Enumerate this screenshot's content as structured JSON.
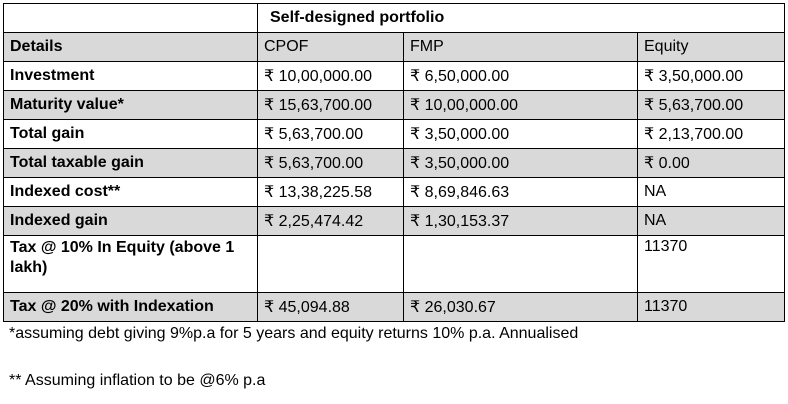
{
  "title_row": {
    "heading": "Self-designed portfolio"
  },
  "columns": [
    "Details",
    "CPOF",
    "FMP",
    "Equity"
  ],
  "rows": [
    {
      "label": "Investment",
      "values": [
        "₹ 10,00,000.00",
        "₹ 6,50,000.00",
        "₹ 3,50,000.00"
      ]
    },
    {
      "label": "Maturity value*",
      "values": [
        "₹ 15,63,700.00",
        "₹ 10,00,000.00",
        "₹ 5,63,700.00"
      ]
    },
    {
      "label": "Total gain",
      "values": [
        "₹ 5,63,700.00",
        "₹ 3,50,000.00",
        "₹ 2,13,700.00"
      ]
    },
    {
      "label": "Total taxable gain",
      "values": [
        "₹ 5,63,700.00",
        "₹ 3,50,000.00",
        "₹ 0.00"
      ]
    },
    {
      "label": "Indexed cost**",
      "values": [
        "₹ 13,38,225.58",
        "₹ 8,69,846.63",
        "NA"
      ]
    },
    {
      "label": "Indexed gain",
      "values": [
        "₹ 2,25,474.42",
        "₹ 1,30,153.37",
        "NA"
      ]
    },
    {
      "label": "Tax @ 10% In Equity (above 1 lakh)",
      "values": [
        "",
        "",
        "11370"
      ]
    },
    {
      "label": "Tax @ 20% with Indexation",
      "values": [
        "₹ 45,094.88",
        "₹ 26,030.67",
        "11370"
      ]
    }
  ],
  "footnotes": [
    "*assuming debt giving 9%p.a for 5 years and equity returns 10% p.a. Annualised",
    "** Assuming inflation to be @6% p.a"
  ]
}
